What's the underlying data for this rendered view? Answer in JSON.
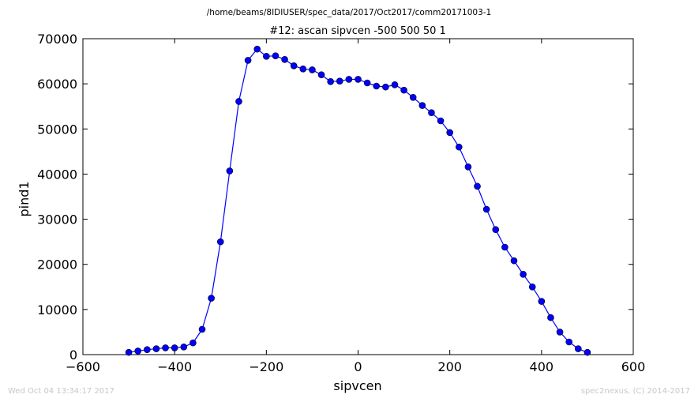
{
  "chart_data": {
    "type": "line",
    "suptitle": "/home/beams/8IDIUSER/spec_data/2017/Oct2017/comm20171003-1",
    "title": "#12: ascan  sipvcen -500 500  50 1",
    "xlabel": "sipvcen",
    "ylabel": "pind1",
    "xlim": [
      -600,
      600
    ],
    "ylim": [
      0,
      70000
    ],
    "xticks": [
      -600,
      -400,
      -200,
      0,
      200,
      400,
      600
    ],
    "yticks": [
      0,
      10000,
      20000,
      30000,
      40000,
      50000,
      60000,
      70000
    ],
    "xtick_labels": [
      "−600",
      "−400",
      "−200",
      "0",
      "200",
      "400",
      "600"
    ],
    "ytick_labels": [
      "0",
      "10000",
      "20000",
      "30000",
      "40000",
      "50000",
      "60000",
      "70000"
    ],
    "grid": false,
    "legend": "none",
    "line_color": "#0000ff",
    "marker_color": "#0000ff",
    "series": [
      {
        "x": [
          -500,
          -480,
          -460,
          -440,
          -420,
          -400,
          -380,
          -360,
          -340,
          -320,
          -300,
          -280,
          -260,
          -240,
          -220,
          -200,
          -180,
          -160,
          -140,
          -120,
          -100,
          -80,
          -60,
          -40,
          -20,
          0,
          20,
          40,
          60,
          80,
          100,
          120,
          140,
          160,
          180,
          200,
          220,
          240,
          260,
          280,
          300,
          320,
          340,
          360,
          380,
          400,
          420,
          440,
          460,
          480,
          500
        ],
        "y": [
          500,
          800,
          1100,
          1300,
          1500,
          1500,
          1700,
          2600,
          5600,
          12500,
          25000,
          40700,
          56100,
          65200,
          67700,
          66100,
          66200,
          65400,
          64000,
          63300,
          63100,
          62000,
          60500,
          60600,
          61000,
          61000,
          60200,
          59500,
          59300,
          59800,
          58600,
          57000,
          55200,
          53600,
          51800,
          49200,
          46000,
          41600,
          37300,
          32200,
          27700,
          23800,
          20800,
          17800,
          15000,
          11800,
          8200,
          5000,
          2800,
          1300,
          500
        ]
      }
    ]
  },
  "footer": {
    "timestamp": "Wed Oct 04 13:34:17 2017",
    "credit": "spec2nexus, (C) 2014-2017"
  }
}
